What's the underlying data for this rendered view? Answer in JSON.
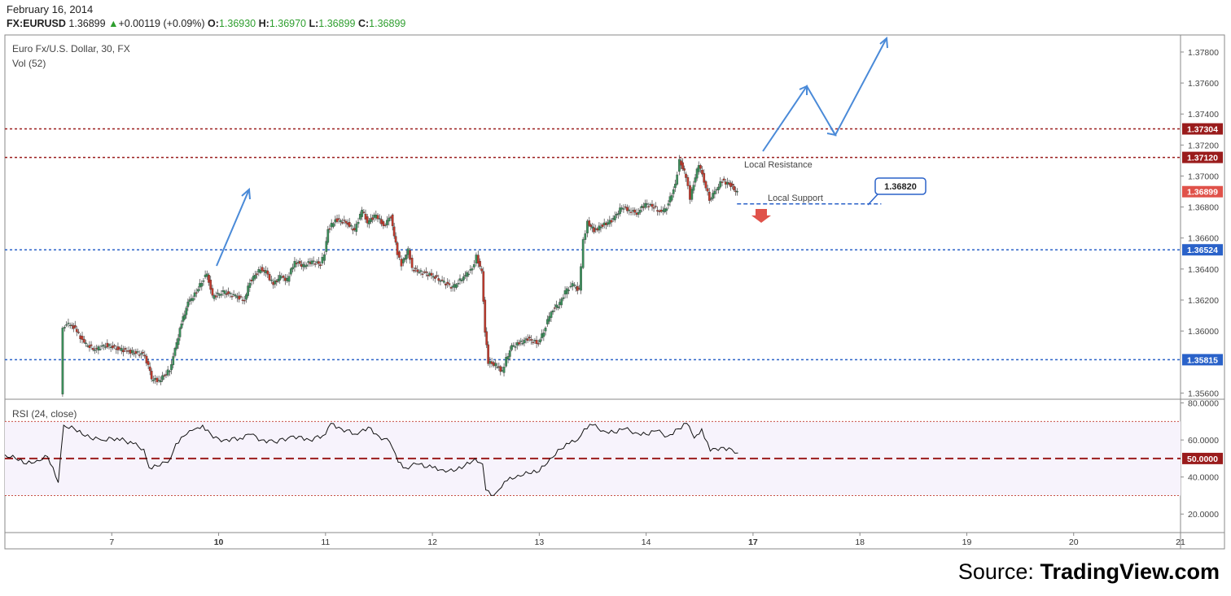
{
  "header": {
    "date": "February 16, 2014",
    "symbol": "FX:EURUSD",
    "last": "1.36899",
    "change": "+0.00119 (+0.09%)",
    "o_label": "O:",
    "o_value": "1.36930",
    "h_label": "H:",
    "h_value": "1.36970",
    "l_label": "L:",
    "l_value": "1.36899",
    "c_label": "C:",
    "c_value": "1.36899",
    "up_color": "#2e9e2e"
  },
  "chart_title": "Euro Fx/U.S. Dollar, 30, FX",
  "volume_label": "Vol (52)",
  "rsi_label": "RSI (24, close)",
  "source": {
    "prefix": "Source: ",
    "brand": "TradingView.com"
  },
  "annotations": {
    "resistance_label": "Local Resistance",
    "support_label": "Local Support",
    "support_callout": "1.36820"
  },
  "chart_data": [
    {
      "type": "candlestick",
      "title": "Euro Fx/U.S. Dollar, 30, FX",
      "ylim": [
        1.3556,
        1.3791
      ],
      "y_ticks": [
        "1.37800",
        "1.37600",
        "1.37400",
        "1.37200",
        "1.37000",
        "1.36800",
        "1.36600",
        "1.36400",
        "1.36200",
        "1.36000",
        "1.35600"
      ],
      "y_tick_values": [
        1.378,
        1.376,
        1.374,
        1.372,
        1.37,
        1.368,
        1.366,
        1.364,
        1.362,
        1.36,
        1.356
      ],
      "x_ticks": [
        "7",
        "10",
        "11",
        "12",
        "13",
        "14",
        "17",
        "18",
        "19",
        "20",
        "21"
      ],
      "x_tick_positions": [
        1,
        2,
        3,
        4,
        5,
        6,
        7,
        8,
        9,
        10,
        11
      ],
      "x_range": [
        0.0,
        11.0
      ],
      "bold_x_ticks": [
        "10",
        "17"
      ],
      "horizontal_levels": [
        {
          "value": 1.37304,
          "label": "1.37304",
          "color": "#9a1c1c",
          "style": "dotted"
        },
        {
          "value": 1.3712,
          "label": "1.37120",
          "color": "#9a1c1c",
          "style": "dotted"
        },
        {
          "value": 1.36524,
          "label": "1.36524",
          "color": "#2a62c9",
          "style": "dotted"
        },
        {
          "value": 1.35815,
          "label": "1.35815",
          "color": "#2a62c9",
          "style": "dotted"
        }
      ],
      "support_line": {
        "value": 1.3682,
        "x_start": 6.85,
        "x_end": 8.2,
        "color": "#2a62c9"
      },
      "last_price": {
        "value": 1.36899,
        "label": "1.36899",
        "color": "#e0524a"
      },
      "up_color": "#3a8f5a",
      "down_color": "#c0392b",
      "close_path": [
        [
          0.53,
          1.356
        ],
        [
          0.55,
          1.3603
        ],
        [
          0.62,
          1.3605
        ],
        [
          0.68,
          1.36
        ],
        [
          0.75,
          1.3592
        ],
        [
          0.85,
          1.3588
        ],
        [
          0.95,
          1.3591
        ],
        [
          1.05,
          1.3589
        ],
        [
          1.15,
          1.3587
        ],
        [
          1.3,
          1.3585
        ],
        [
          1.35,
          1.3578
        ],
        [
          1.38,
          1.3569
        ],
        [
          1.45,
          1.3568
        ],
        [
          1.55,
          1.3575
        ],
        [
          1.6,
          1.3588
        ],
        [
          1.66,
          1.3605
        ],
        [
          1.72,
          1.3618
        ],
        [
          1.8,
          1.3625
        ],
        [
          1.85,
          1.3632
        ],
        [
          1.9,
          1.3637
        ],
        [
          1.95,
          1.3622
        ],
        [
          2.05,
          1.3625
        ],
        [
          2.15,
          1.3623
        ],
        [
          2.25,
          1.362
        ],
        [
          2.3,
          1.3632
        ],
        [
          2.4,
          1.364
        ],
        [
          2.45,
          1.3638
        ],
        [
          2.52,
          1.363
        ],
        [
          2.58,
          1.3635
        ],
        [
          2.65,
          1.3633
        ],
        [
          2.72,
          1.3645
        ],
        [
          2.8,
          1.3642
        ],
        [
          2.88,
          1.3645
        ],
        [
          2.96,
          1.3643
        ],
        [
          3.0,
          1.365
        ],
        [
          3.03,
          1.3665
        ],
        [
          3.1,
          1.3672
        ],
        [
          3.2,
          1.367
        ],
        [
          3.28,
          1.3665
        ],
        [
          3.35,
          1.3678
        ],
        [
          3.4,
          1.367
        ],
        [
          3.48,
          1.3675
        ],
        [
          3.55,
          1.3668
        ],
        [
          3.62,
          1.3674
        ],
        [
          3.68,
          1.365
        ],
        [
          3.72,
          1.3643
        ],
        [
          3.78,
          1.3652
        ],
        [
          3.82,
          1.364
        ],
        [
          3.9,
          1.3638
        ],
        [
          4.0,
          1.3636
        ],
        [
          4.1,
          1.3632
        ],
        [
          4.2,
          1.3628
        ],
        [
          4.3,
          1.3635
        ],
        [
          4.38,
          1.364
        ],
        [
          4.42,
          1.3648
        ],
        [
          4.47,
          1.3638
        ],
        [
          4.5,
          1.36
        ],
        [
          4.53,
          1.358
        ],
        [
          4.6,
          1.3578
        ],
        [
          4.66,
          1.3574
        ],
        [
          4.7,
          1.3582
        ],
        [
          4.75,
          1.359
        ],
        [
          4.82,
          1.3592
        ],
        [
          4.9,
          1.3595
        ],
        [
          5.0,
          1.3592
        ],
        [
          5.05,
          1.36
        ],
        [
          5.12,
          1.3613
        ],
        [
          5.2,
          1.3618
        ],
        [
          5.25,
          1.3625
        ],
        [
          5.32,
          1.363
        ],
        [
          5.38,
          1.3626
        ],
        [
          5.42,
          1.3658
        ],
        [
          5.46,
          1.367
        ],
        [
          5.52,
          1.3665
        ],
        [
          5.6,
          1.3668
        ],
        [
          5.7,
          1.3672
        ],
        [
          5.78,
          1.368
        ],
        [
          5.85,
          1.3678
        ],
        [
          5.92,
          1.3676
        ],
        [
          6.0,
          1.3682
        ],
        [
          6.08,
          1.368
        ],
        [
          6.15,
          1.3676
        ],
        [
          6.2,
          1.368
        ],
        [
          6.28,
          1.3694
        ],
        [
          6.32,
          1.371
        ],
        [
          6.38,
          1.37
        ],
        [
          6.42,
          1.3686
        ],
        [
          6.5,
          1.3708
        ],
        [
          6.55,
          1.3697
        ],
        [
          6.6,
          1.3685
        ],
        [
          6.65,
          1.369
        ],
        [
          6.72,
          1.3697
        ],
        [
          6.8,
          1.3694
        ],
        [
          6.86,
          1.3689
        ]
      ]
    },
    {
      "type": "line",
      "title": "RSI (24, close)",
      "ylim": [
        10,
        82
      ],
      "y_ticks": [
        "80.0000",
        "60.0000",
        "40.0000",
        "20.0000"
      ],
      "y_tick_values": [
        80,
        60,
        40,
        20
      ],
      "bands": [
        70,
        30
      ],
      "midline": {
        "value": 50,
        "label": "50.0000",
        "color": "#9a1c1c"
      },
      "series": [
        {
          "values": [
            [
              0.0,
              52
            ],
            [
              0.1,
              50
            ],
            [
              0.2,
              47
            ],
            [
              0.3,
              49
            ],
            [
              0.4,
              51
            ],
            [
              0.5,
              37
            ],
            [
              0.55,
              68
            ],
            [
              0.65,
              66
            ],
            [
              0.75,
              62
            ],
            [
              0.9,
              60
            ],
            [
              1.05,
              61
            ],
            [
              1.2,
              58
            ],
            [
              1.3,
              55
            ],
            [
              1.35,
              45
            ],
            [
              1.45,
              46
            ],
            [
              1.55,
              50
            ],
            [
              1.6,
              58
            ],
            [
              1.7,
              63
            ],
            [
              1.78,
              66
            ],
            [
              1.85,
              68
            ],
            [
              1.95,
              61
            ],
            [
              2.05,
              60
            ],
            [
              2.2,
              61
            ],
            [
              2.3,
              63
            ],
            [
              2.4,
              60
            ],
            [
              2.52,
              59
            ],
            [
              2.65,
              61
            ],
            [
              2.75,
              62
            ],
            [
              2.85,
              60
            ],
            [
              3.0,
              63
            ],
            [
              3.05,
              69
            ],
            [
              3.15,
              66
            ],
            [
              3.3,
              63
            ],
            [
              3.4,
              67
            ],
            [
              3.5,
              62
            ],
            [
              3.6,
              59
            ],
            [
              3.68,
              48
            ],
            [
              3.75,
              45
            ],
            [
              3.85,
              47
            ],
            [
              4.0,
              45
            ],
            [
              4.1,
              44
            ],
            [
              4.2,
              43
            ],
            [
              4.3,
              46
            ],
            [
              4.4,
              50
            ],
            [
              4.47,
              47
            ],
            [
              4.5,
              33
            ],
            [
              4.55,
              30
            ],
            [
              4.62,
              33
            ],
            [
              4.7,
              38
            ],
            [
              4.8,
              41
            ],
            [
              4.9,
              42
            ],
            [
              5.0,
              43
            ],
            [
              5.1,
              50
            ],
            [
              5.2,
              55
            ],
            [
              5.28,
              58
            ],
            [
              5.36,
              60
            ],
            [
              5.42,
              66
            ],
            [
              5.5,
              68
            ],
            [
              5.6,
              65
            ],
            [
              5.7,
              64
            ],
            [
              5.8,
              66
            ],
            [
              5.9,
              64
            ],
            [
              6.0,
              63
            ],
            [
              6.1,
              65
            ],
            [
              6.2,
              62
            ],
            [
              6.3,
              66
            ],
            [
              6.38,
              69
            ],
            [
              6.45,
              61
            ],
            [
              6.52,
              66
            ],
            [
              6.6,
              54
            ],
            [
              6.7,
              56
            ],
            [
              6.8,
              55
            ],
            [
              6.86,
              53
            ]
          ]
        }
      ]
    }
  ]
}
